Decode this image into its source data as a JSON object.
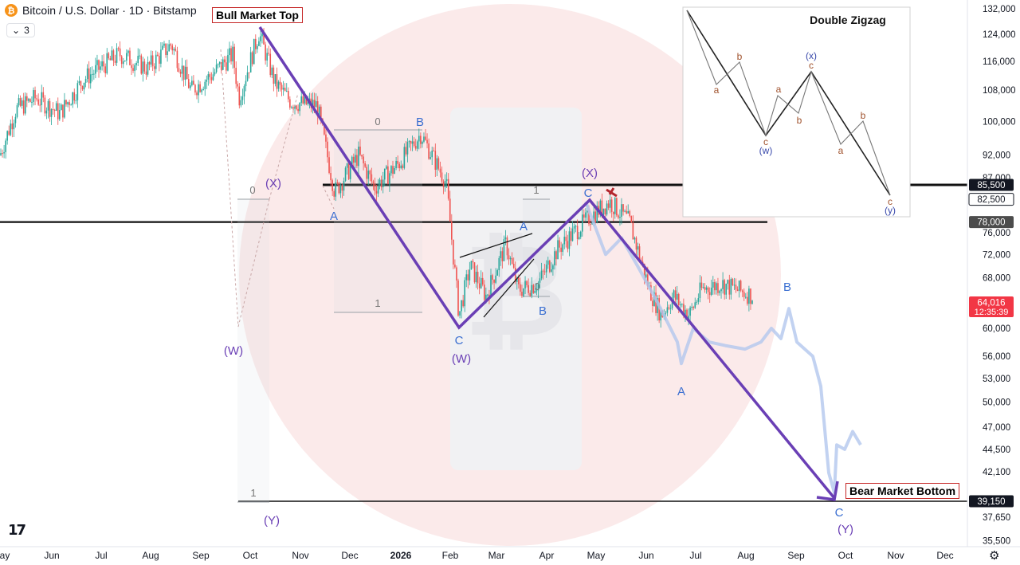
{
  "header": {
    "symbol_icon": "bitcoin-icon",
    "title": "Bitcoin / U.S. Dollar · 1D · Bitstamp",
    "indicator_count": "3"
  },
  "labels": {
    "bull_top": "Bull Market Top",
    "bear_bottom": "Bear Market Bottom"
  },
  "chart_data": {
    "type": "line",
    "title": "Bitcoin / U.S. Dollar · 1D · Bitstamp",
    "y_axis": {
      "scale": "log",
      "ticks": [
        "132,000",
        "124,000",
        "116,000",
        "108,000",
        "100,000",
        "92,000",
        "87,000",
        "82,500",
        "78,000",
        "76,000",
        "72,000",
        "68,000",
        "64,016",
        "60,000",
        "56,000",
        "53,000",
        "50,000",
        "47,000",
        "44,500",
        "42,100",
        "39,150",
        "37,650",
        "35,500"
      ]
    },
    "x_axis": {
      "ticks": [
        "ay",
        "Jun",
        "Jul",
        "Aug",
        "Sep",
        "Oct",
        "Nov",
        "Dec",
        "2026",
        "Feb",
        "Mar",
        "Apr",
        "May",
        "Jun",
        "Jul",
        "Aug",
        "Sep",
        "Oct",
        "Nov",
        "Dec"
      ]
    },
    "price_badges": [
      {
        "value": "85,500",
        "style": "dark"
      },
      {
        "value": "82,500",
        "style": "outline"
      },
      {
        "value": "78,000",
        "style": "gray"
      },
      {
        "value": "64,016",
        "sub": "12:35:39",
        "style": "red"
      },
      {
        "value": "39,150",
        "style": "dark"
      }
    ],
    "horizontal_lines": [
      85500,
      78000,
      39150
    ],
    "wave_labels": [
      {
        "text": "(X)",
        "color": "#6a3fb5"
      },
      {
        "text": "0",
        "color": "#777"
      },
      {
        "text": "A",
        "color": "#3b6fd1"
      },
      {
        "text": "0",
        "color": "#777"
      },
      {
        "text": "B",
        "color": "#3b6fd1"
      },
      {
        "text": "1",
        "color": "#777"
      },
      {
        "text": "(W)",
        "color": "#6a3fb5"
      },
      {
        "text": "C",
        "color": "#3b6fd1"
      },
      {
        "text": "(W)",
        "color": "#6a3fb5"
      },
      {
        "text": "A",
        "color": "#3b6fd1"
      },
      {
        "text": "0",
        "color": "#777"
      },
      {
        "text": "B",
        "color": "#3b6fd1"
      },
      {
        "text": "(X)",
        "color": "#6a3fb5"
      },
      {
        "text": "1",
        "color": "#777"
      },
      {
        "text": "C",
        "color": "#3b6fd1"
      },
      {
        "text": "B",
        "color": "#3b6fd1"
      },
      {
        "text": "A",
        "color": "#3b6fd1"
      },
      {
        "text": "1",
        "color": "#777"
      },
      {
        "text": "(Y)",
        "color": "#6a3fb5"
      },
      {
        "text": "C",
        "color": "#3b6fd1"
      },
      {
        "text": "(Y)",
        "color": "#6a3fb5"
      }
    ],
    "inset": {
      "title": "Double Zigzag",
      "labels": [
        "a",
        "b",
        "c",
        "(w)",
        "a",
        "b",
        "c",
        "(x)",
        "a",
        "b",
        "c",
        "(y)"
      ]
    },
    "colors": {
      "path": "#6a3fb5",
      "wave_blue": "#3b6fd1",
      "up_candle": "#26a69a",
      "down_candle": "#ef5350",
      "projection": "#b3c7ee",
      "red_box": "#c62828"
    }
  }
}
